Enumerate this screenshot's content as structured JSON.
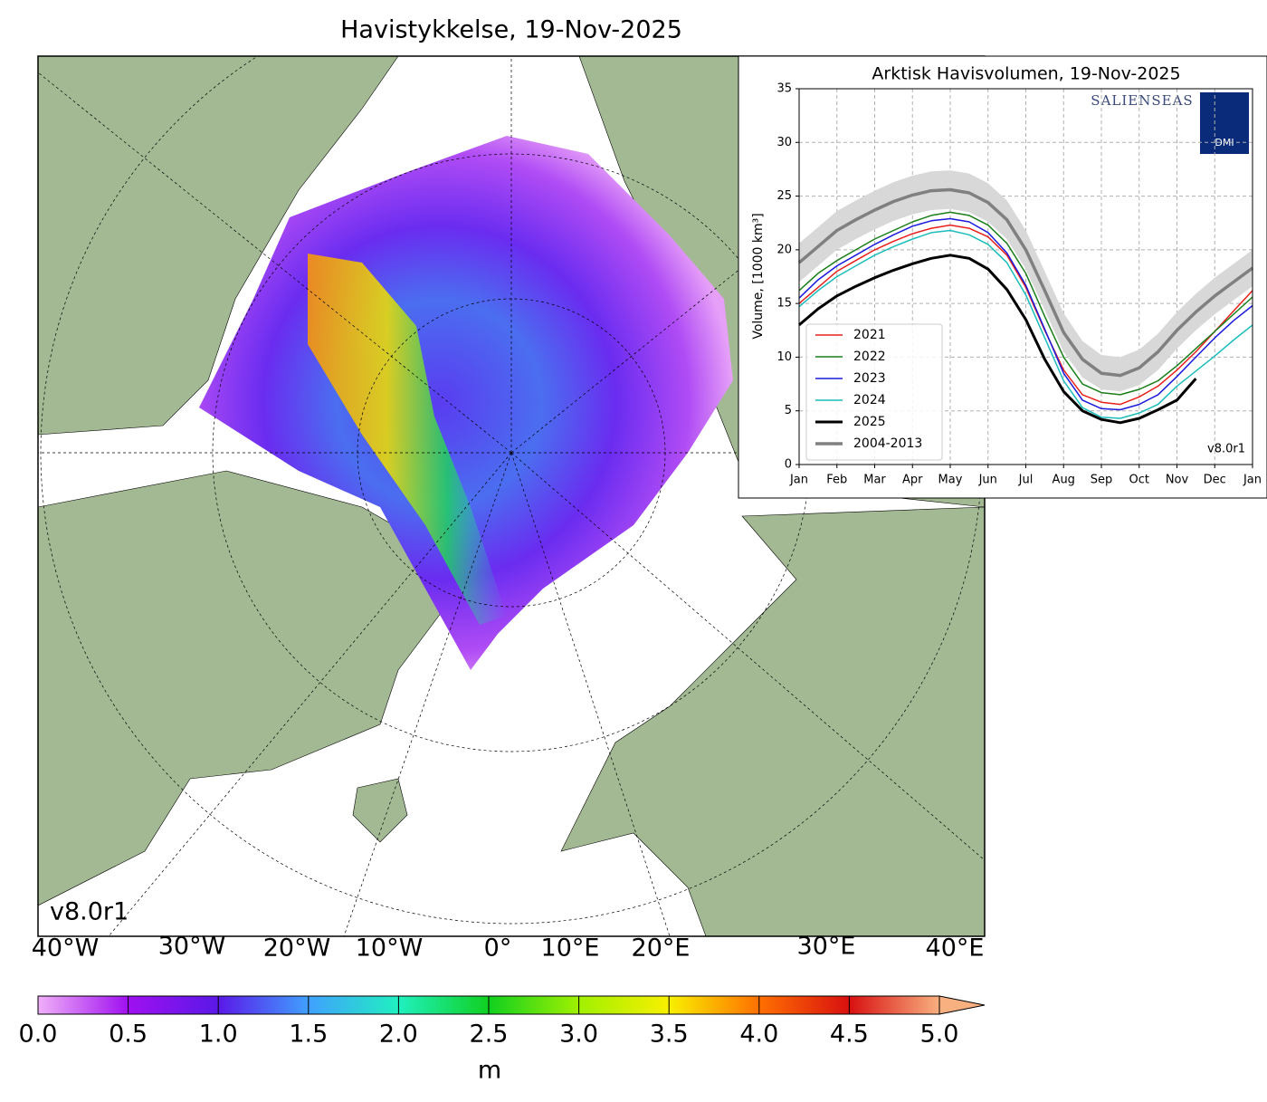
{
  "map": {
    "title": "Havistykkelse, 19-Nov-2025",
    "version": "v8.0r1",
    "lon_labels": [
      "40°W",
      "30°W",
      "20°W",
      "10°W",
      "0°",
      "10°E",
      "20°E",
      "30°E",
      "40°E"
    ]
  },
  "colorbar": {
    "label": "m",
    "ticks": [
      {
        "value": 0,
        "label": "0.0"
      },
      0.5,
      {
        "value": 1,
        "label": "1.0"
      },
      1.5,
      {
        "value": 2,
        "label": "2.0"
      },
      2.5,
      {
        "value": 3,
        "label": "3.0"
      },
      3.5,
      {
        "value": 4,
        "label": "4.0"
      },
      4.5,
      {
        "value": 5,
        "label": "5.0"
      }
    ],
    "lim": [
      0,
      5
    ]
  },
  "chart_data": {
    "type": "line",
    "title": "Arktisk Havisvolumen, 19-Nov-2025",
    "y_label": "Volume, [1000 km³]",
    "version": "v8.0r1",
    "logo_text": "SALIENSEAS",
    "logo_badge": "DMI",
    "categories": [
      "Jan",
      null,
      "Feb",
      null,
      "Mar",
      null,
      "Apr",
      null,
      "May",
      null,
      "Jun",
      null,
      "Jul",
      null,
      "Aug",
      null,
      "Sep",
      null,
      "Oct",
      null,
      "Nov",
      null,
      "Dec",
      null,
      "Jan"
    ],
    "ylim": [
      0,
      35
    ],
    "yticks": [
      0,
      5,
      10,
      15,
      20,
      25,
      30,
      35
    ],
    "grid": true,
    "legend": "lower left",
    "series": [
      {
        "name": "2021",
        "color": "#e8201c",
        "width": 1.5,
        "values": [
          15.0,
          16.5,
          18.0,
          19.0,
          20.0,
          20.8,
          21.5,
          22.0,
          22.3,
          22.0,
          21.2,
          19.5,
          16.5,
          12.5,
          8.8,
          6.5,
          5.8,
          5.6,
          6.3,
          7.3,
          8.8,
          10.5,
          12.4,
          14.3,
          16.2
        ]
      },
      {
        "name": "2022",
        "color": "#1a7f1a",
        "width": 1.5,
        "values": [
          16.2,
          17.8,
          19.0,
          20.0,
          21.0,
          21.8,
          22.6,
          23.2,
          23.5,
          23.2,
          22.3,
          20.6,
          17.8,
          13.8,
          10.0,
          7.5,
          6.7,
          6.5,
          7.0,
          7.8,
          9.2,
          10.8,
          12.4,
          14.0,
          15.6
        ]
      },
      {
        "name": "2023",
        "color": "#1a1adc",
        "width": 1.5,
        "values": [
          15.5,
          17.2,
          18.5,
          19.5,
          20.5,
          21.4,
          22.2,
          22.7,
          22.9,
          22.6,
          21.6,
          19.7,
          16.7,
          12.6,
          8.5,
          6.0,
          5.2,
          5.1,
          5.6,
          6.5,
          8.2,
          10.0,
          11.8,
          13.4,
          14.8
        ]
      },
      {
        "name": "2024",
        "color": "#1bbcbc",
        "width": 1.5,
        "values": [
          14.7,
          16.2,
          17.5,
          18.5,
          19.5,
          20.3,
          21.0,
          21.6,
          21.8,
          21.4,
          20.5,
          18.8,
          15.8,
          11.8,
          7.8,
          5.3,
          4.4,
          4.3,
          4.8,
          5.6,
          7.3,
          8.7,
          10.1,
          11.6,
          13.0
        ]
      },
      {
        "name": "2025",
        "color": "#000000",
        "width": 3,
        "values": [
          13.0,
          14.5,
          15.7,
          16.6,
          17.4,
          18.1,
          18.7,
          19.2,
          19.5,
          19.2,
          18.2,
          16.3,
          13.5,
          9.8,
          6.8,
          5.0,
          4.2,
          3.9,
          4.3,
          5.1,
          6.0,
          8.0,
          null,
          null,
          null
        ]
      },
      {
        "name": "2004-2013",
        "color": "#808080",
        "width": 3.5,
        "values": [
          18.8,
          20.3,
          21.8,
          22.8,
          23.7,
          24.5,
          25.1,
          25.5,
          25.6,
          25.3,
          24.4,
          22.8,
          20.0,
          16.2,
          12.3,
          9.8,
          8.5,
          8.3,
          9.0,
          10.5,
          12.5,
          14.2,
          15.7,
          17.0,
          18.3
        ],
        "lower": [
          17.0,
          18.5,
          20.0,
          21.0,
          21.9,
          22.7,
          23.3,
          23.7,
          23.8,
          23.5,
          22.6,
          21.0,
          18.2,
          14.4,
          10.5,
          8.1,
          7.0,
          6.8,
          7.4,
          8.8,
          10.8,
          12.5,
          14.0,
          15.3,
          16.6
        ],
        "upper": [
          20.6,
          22.1,
          23.6,
          24.6,
          25.5,
          26.3,
          26.9,
          27.3,
          27.4,
          27.1,
          26.2,
          24.6,
          21.8,
          18.0,
          14.1,
          11.5,
          10.2,
          10.0,
          10.7,
          12.2,
          14.2,
          15.9,
          17.4,
          18.7,
          20.0
        ]
      }
    ]
  }
}
